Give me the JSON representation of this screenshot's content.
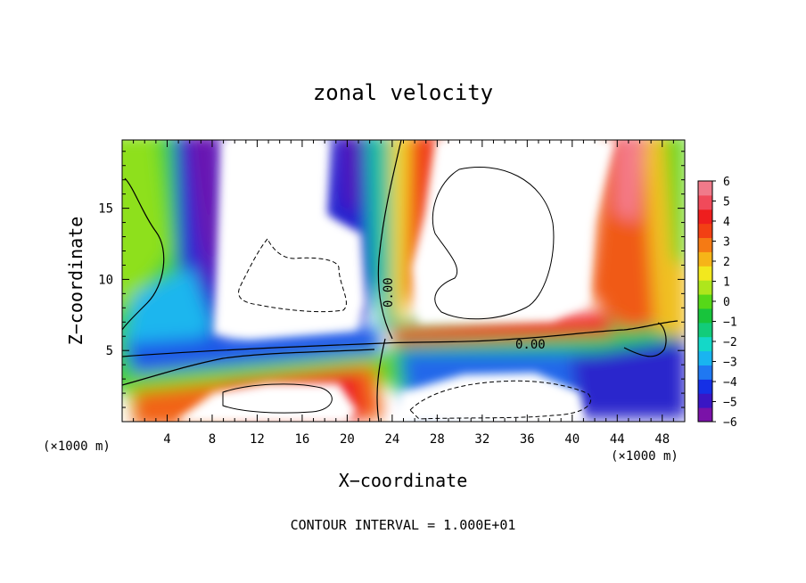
{
  "chart_data": {
    "type": "heatmap",
    "title": "zonal velocity",
    "xlabel": "X−coordinate",
    "ylabel": "Z−coordinate",
    "x_unit_left": "(×1000 m)",
    "x_unit_right": "(×1000 m)",
    "footer": "CONTOUR INTERVAL = 1.000E+01",
    "xlim": [
      0,
      50
    ],
    "ylim": [
      0,
      19.8
    ],
    "x_ticks": [
      4,
      8,
      12,
      16,
      20,
      24,
      28,
      32,
      36,
      40,
      44,
      48
    ],
    "y_ticks": [
      5,
      10,
      15
    ],
    "x_tick_labels": [
      "4",
      "8",
      "12",
      "16",
      "20",
      "24",
      "28",
      "32",
      "36",
      "40",
      "44",
      "48"
    ],
    "y_tick_labels": [
      "5",
      "10",
      "15"
    ],
    "contour_labels": [
      {
        "text": "0.00",
        "x": 23.6,
        "y": 8.0,
        "rotate": -90
      },
      {
        "text": "0.00",
        "x": 36.5,
        "y": 5.5,
        "rotate": 0
      }
    ],
    "colorbar": {
      "min": -6,
      "max": 6,
      "tick_labels": [
        "6",
        "5",
        "4",
        "3",
        "2",
        "1",
        "0",
        "−1",
        "−2",
        "−3",
        "−4",
        "−5",
        "−6"
      ],
      "colors": [
        "#7a12a8",
        "#3a16c4",
        "#1530e6",
        "#1f78f2",
        "#19b4f0",
        "#14d8c8",
        "#12cc7a",
        "#18c43c",
        "#56d818",
        "#aee61c",
        "#f2e81e",
        "#f6b418",
        "#f57a14",
        "#f24014",
        "#ee1e1e",
        "#f04a5a",
        "#f07a8a"
      ]
    },
    "regions_note": "Filled zonal velocity field; white areas exceed the color scale range."
  }
}
